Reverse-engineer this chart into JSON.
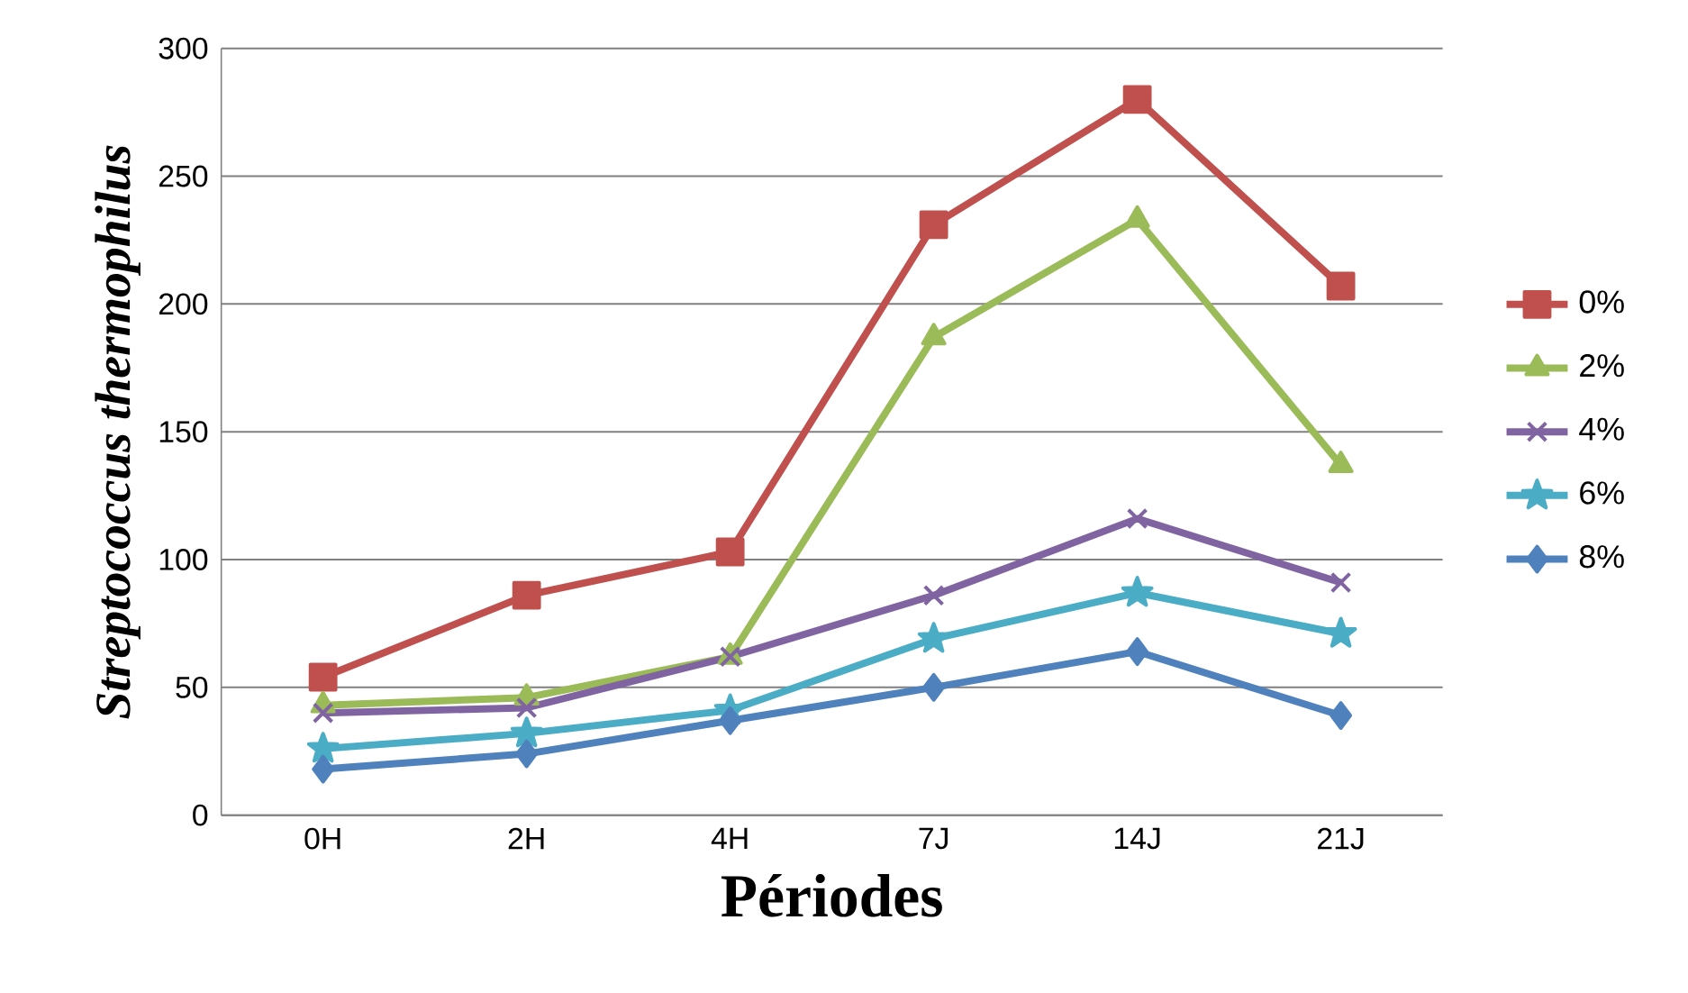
{
  "chart_data": {
    "type": "line",
    "xlabel": "Périodes",
    "ylabel": "Streptococcus thermophilus",
    "categories": [
      "0H",
      "2H",
      "4H",
      "7J",
      "14J",
      "21J"
    ],
    "ylim": [
      0,
      300
    ],
    "yticks": [
      0,
      50,
      100,
      150,
      200,
      250,
      300
    ],
    "grid": "y",
    "legend": "right",
    "line_style": "solid",
    "series": [
      {
        "name": "0%",
        "color": "#c0504d",
        "marker": "square",
        "values": [
          54,
          86,
          103,
          231,
          280,
          207
        ]
      },
      {
        "name": "2%",
        "color": "#9bbb59",
        "marker": "triangle",
        "values": [
          43,
          46,
          62,
          187,
          233,
          137
        ]
      },
      {
        "name": "4%",
        "color": "#8064a2",
        "marker": "cross",
        "values": [
          40,
          42,
          62,
          86,
          116,
          91
        ]
      },
      {
        "name": "6%",
        "color": "#4bacc6",
        "marker": "star",
        "values": [
          26,
          32,
          41,
          69,
          87,
          71
        ]
      },
      {
        "name": "8%",
        "color": "#4f81bd",
        "marker": "diamond",
        "values": [
          18,
          24,
          37,
          50,
          64,
          39
        ]
      }
    ]
  }
}
